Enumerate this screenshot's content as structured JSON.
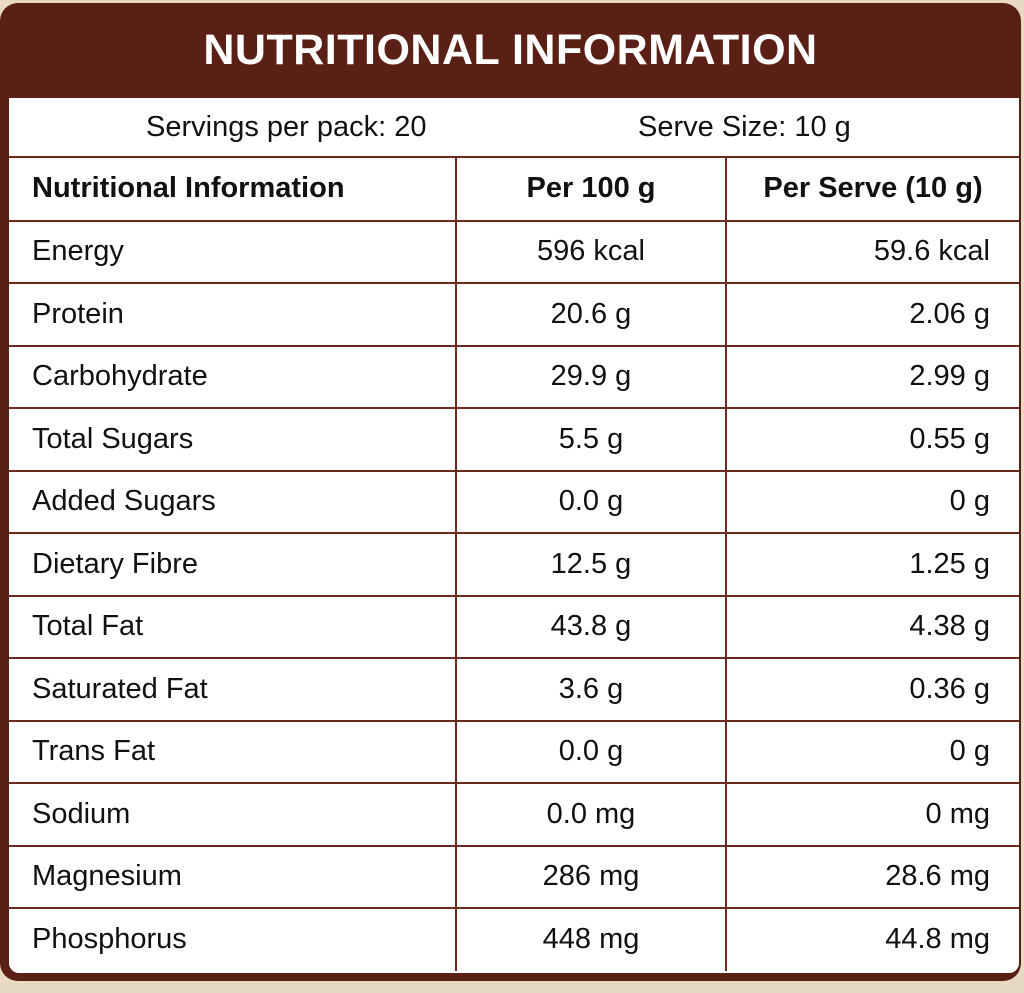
{
  "title": "NUTRITIONAL INFORMATION",
  "servings_per_pack": "Servings per pack: 20",
  "serve_size": "Serve Size: 10 g",
  "table": {
    "headers": [
      "Nutritional Information",
      "Per 100 g",
      "Per Serve (10 g)"
    ],
    "rows": [
      [
        "Energy",
        "596 kcal",
        "59.6 kcal"
      ],
      [
        "Protein",
        "20.6 g",
        "2.06 g"
      ],
      [
        "Carbohydrate",
        "29.9 g",
        "2.99 g"
      ],
      [
        "Total Sugars",
        "5.5 g",
        "0.55 g"
      ],
      [
        "Added Sugars",
        "0.0 g",
        "0 g"
      ],
      [
        "Dietary Fibre",
        "12.5 g",
        "1.25 g"
      ],
      [
        "Total Fat",
        "43.8 g",
        "4.38 g"
      ],
      [
        "Saturated Fat",
        "3.6 g",
        "0.36 g"
      ],
      [
        "Trans Fat",
        "0.0 g",
        "0 g"
      ],
      [
        "Sodium",
        "0.0 mg",
        "0 mg"
      ],
      [
        "Magnesium",
        "286 mg",
        "28.6 mg"
      ],
      [
        "Phosphorus",
        "448 mg",
        "44.8 mg"
      ]
    ]
  },
  "colors": {
    "frame": "#5a2015",
    "background": "#e7d9c2",
    "rule": "#6a2a1e"
  }
}
